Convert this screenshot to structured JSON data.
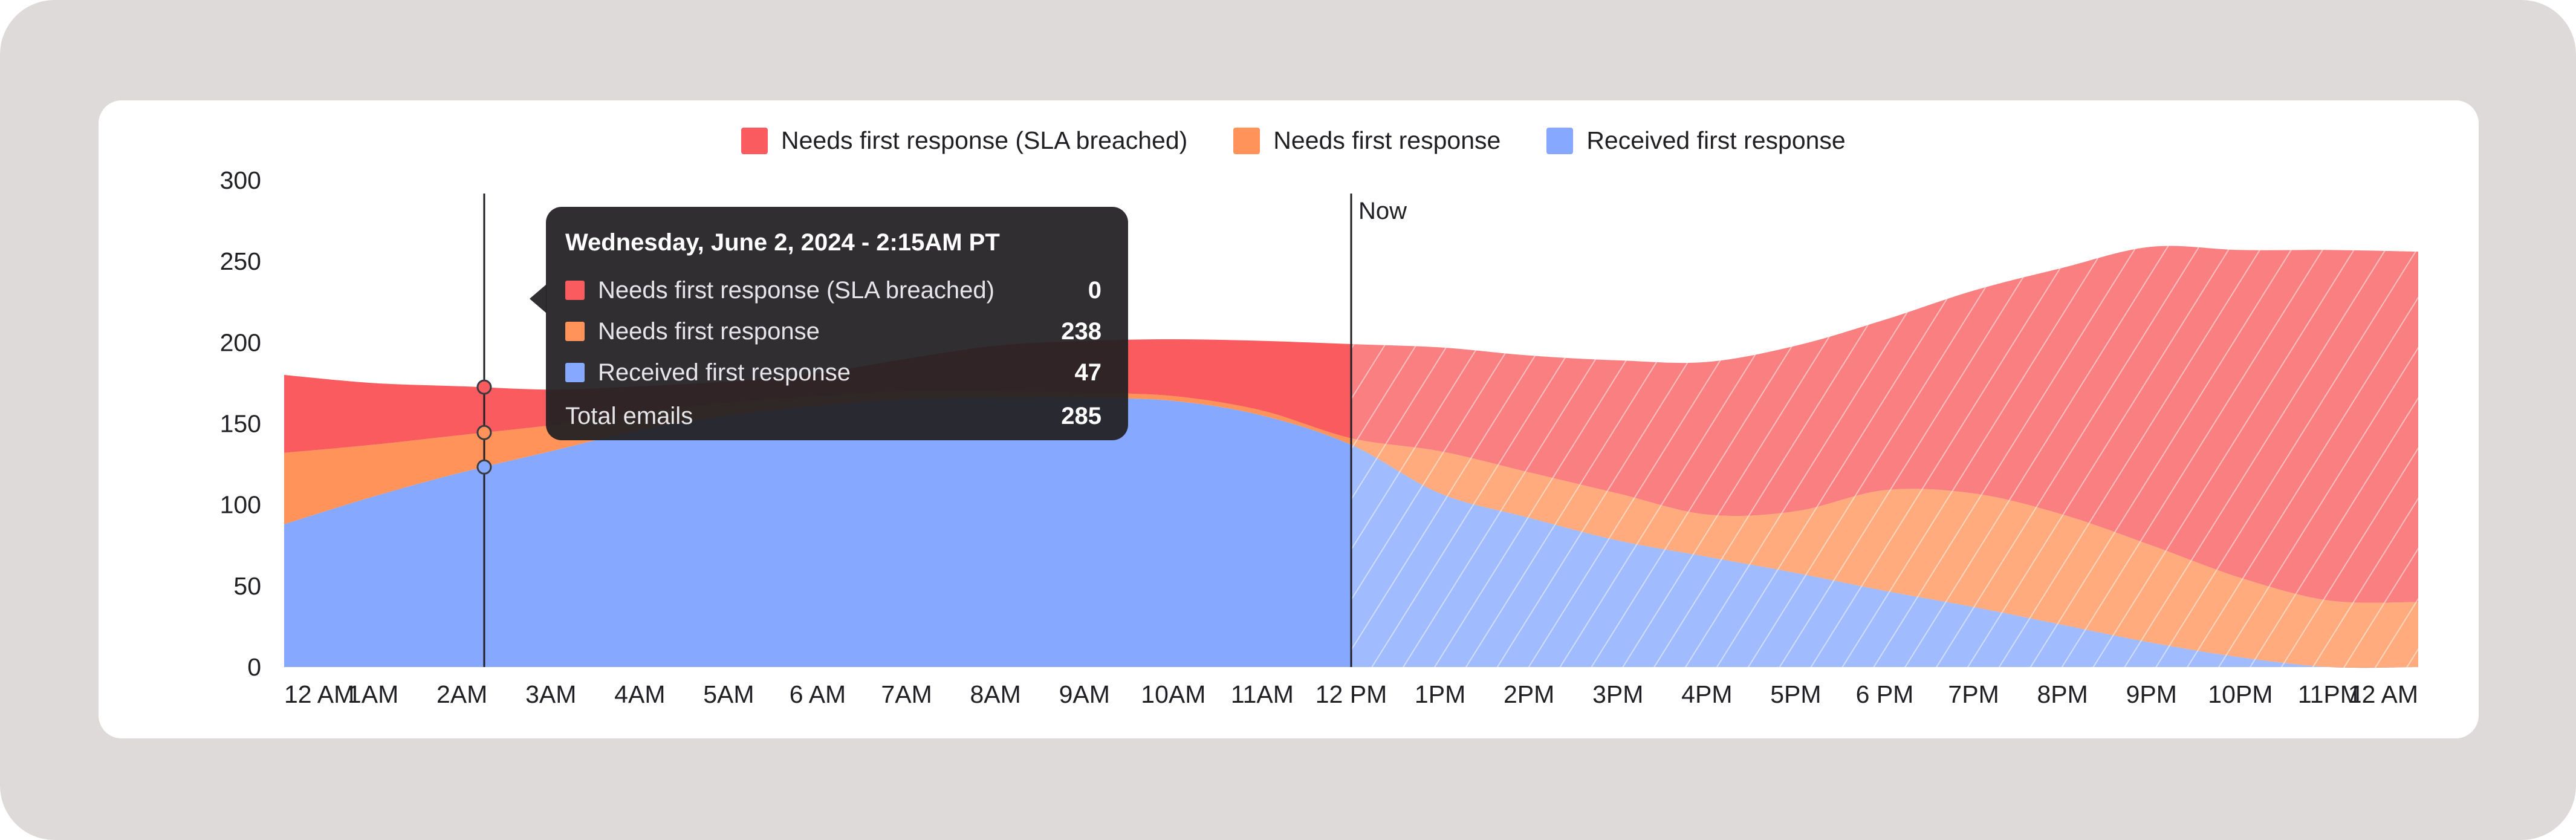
{
  "chart_data": {
    "type": "area",
    "stacked": true,
    "grid": false,
    "legend_position": "top-center",
    "categories": [
      "12 AM",
      "1AM",
      "2AM",
      "3AM",
      "4AM",
      "5AM",
      "6 AM",
      "7AM",
      "8AM",
      "9AM",
      "10AM",
      "11AM",
      "12 PM",
      "1PM",
      "2PM",
      "3PM",
      "4PM",
      "5PM",
      "6 PM",
      "7PM",
      "8PM",
      "9PM",
      "10PM",
      "11PM",
      "12 AM"
    ],
    "y_ticks": [
      0,
      50,
      100,
      150,
      200,
      250,
      300
    ],
    "ylim": [
      0,
      300
    ],
    "series": [
      {
        "name": "Received first response",
        "color": "#86a8ff",
        "values": [
          88,
          105,
          120,
          133,
          146,
          155,
          161,
          165,
          166,
          166,
          164,
          155,
          137,
          107,
          92,
          78,
          68,
          58,
          47,
          37,
          26,
          15,
          6,
          0,
          0
        ]
      },
      {
        "name": "Needs first response",
        "color": "#ff9359",
        "values": [
          44,
          32,
          23,
          16,
          11,
          8,
          6,
          5,
          4,
          3,
          3,
          3,
          4,
          26,
          28,
          29,
          26,
          38,
          62,
          70,
          68,
          60,
          49,
          41,
          40
        ]
      },
      {
        "name": "Needs first response (SLA breached)",
        "color": "#f95b5e",
        "values": [
          48,
          38,
          30,
          22,
          16,
          13,
          14,
          20,
          28,
          32,
          35,
          43,
          58,
          64,
          72,
          82,
          94,
          102,
          105,
          125,
          152,
          184,
          202,
          216,
          216
        ]
      }
    ],
    "forecast_start": "12 PM",
    "now_label": "Now",
    "marker_time": "2:15AM"
  },
  "tooltip": {
    "title": "Wednesday, June 2, 2024 - 2:15AM PT",
    "rows": [
      {
        "label": "Needs first response (SLA breached)",
        "value": "0",
        "color": "#f95b5e"
      },
      {
        "label": "Needs first response",
        "value": "238",
        "color": "#ff9359"
      },
      {
        "label": "Received first response",
        "value": "47",
        "color": "#86a8ff"
      }
    ],
    "total_label": "Total emails",
    "total_value": "285"
  }
}
